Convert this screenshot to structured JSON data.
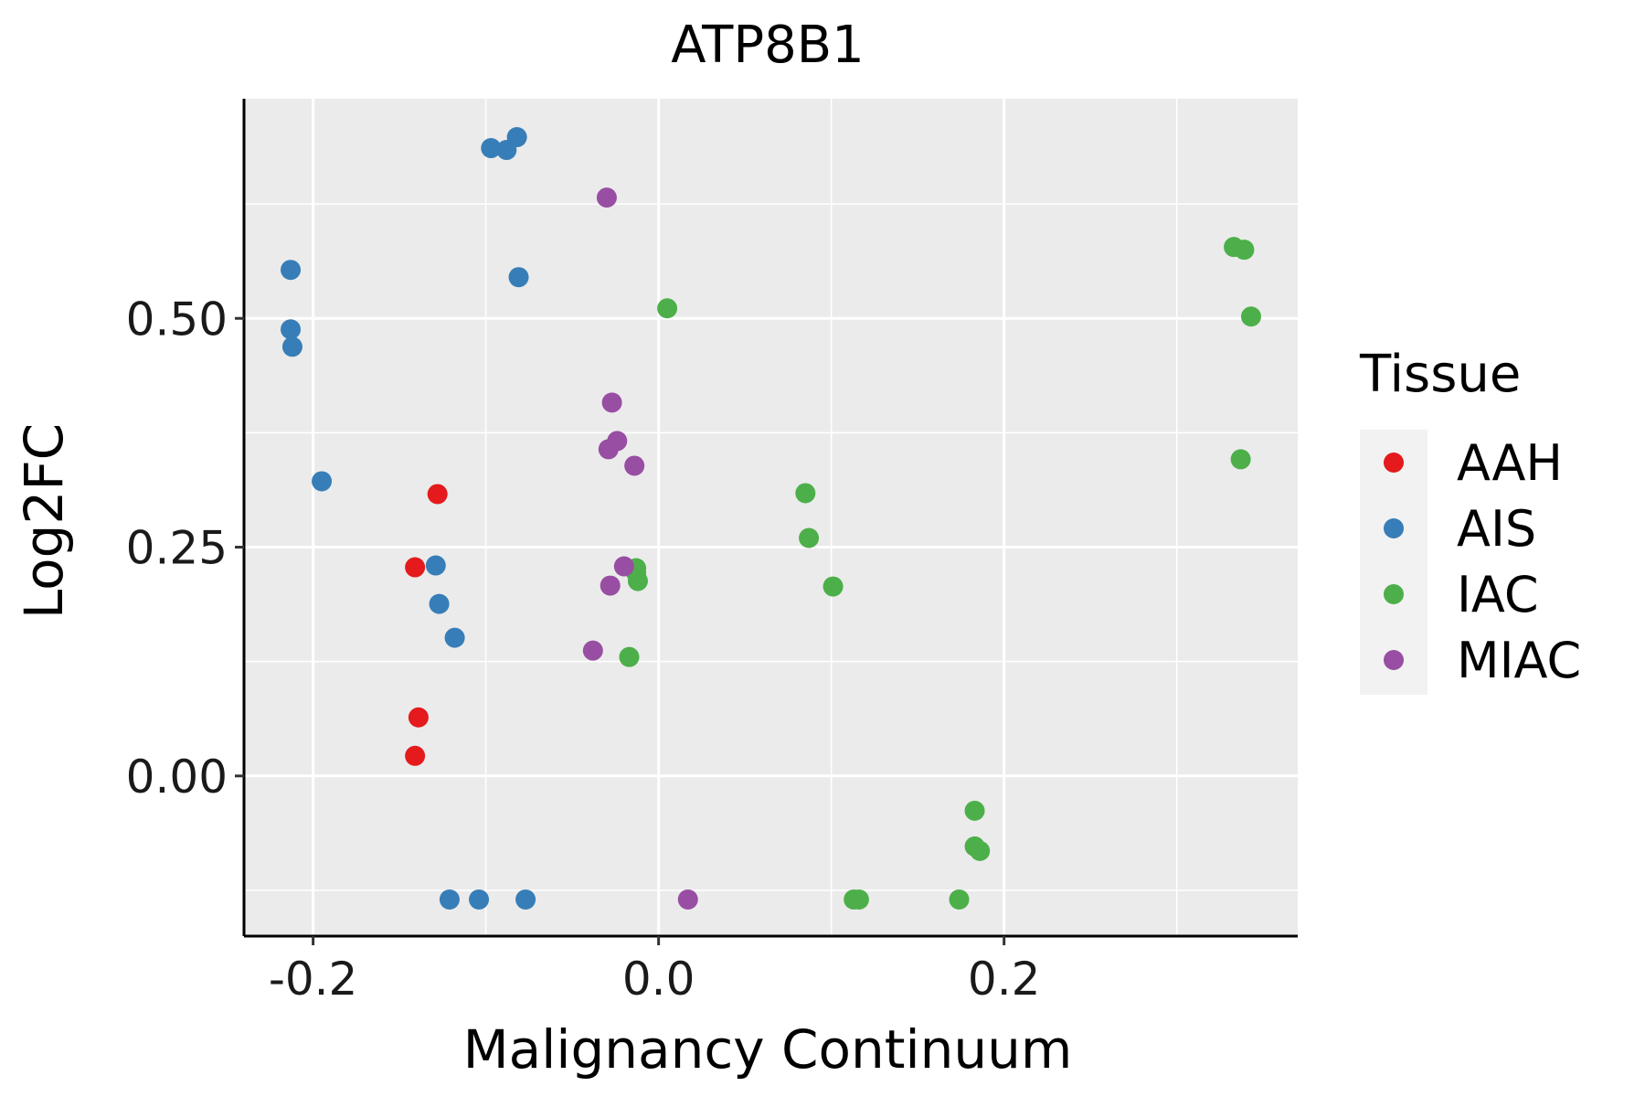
{
  "chart_data": {
    "type": "scatter",
    "title": "ATP8B1",
    "xlabel": "Malignancy Continuum",
    "ylabel": "Log2FC",
    "xlim": [
      -0.24,
      0.37
    ],
    "ylim": [
      -0.175,
      0.74
    ],
    "x_ticks": [
      -0.2,
      0.0,
      0.2
    ],
    "x_tick_labels": [
      "-0.2",
      "0.0",
      "0.2"
    ],
    "y_ticks": [
      0.0,
      0.25,
      0.5
    ],
    "y_tick_labels": [
      "0.00",
      "0.25",
      "0.50"
    ],
    "grid": true,
    "legend": {
      "title": "Tissue",
      "position": "right",
      "entries": [
        "AAH",
        "AIS",
        "IAC",
        "MIAC"
      ]
    },
    "colors": {
      "AAH": "#E41A1C",
      "AIS": "#377EB8",
      "IAC": "#4DAF4A",
      "MIAC": "#984EA3"
    },
    "series": [
      {
        "name": "AAH",
        "points": [
          {
            "x": -0.128,
            "y": 0.308
          },
          {
            "x": -0.141,
            "y": 0.228
          },
          {
            "x": -0.139,
            "y": 0.064
          },
          {
            "x": -0.141,
            "y": 0.022
          }
        ]
      },
      {
        "name": "AIS",
        "points": [
          {
            "x": -0.082,
            "y": 0.698
          },
          {
            "x": -0.097,
            "y": 0.686
          },
          {
            "x": -0.088,
            "y": 0.684
          },
          {
            "x": -0.081,
            "y": 0.545
          },
          {
            "x": -0.213,
            "y": 0.553
          },
          {
            "x": -0.213,
            "y": 0.488
          },
          {
            "x": -0.212,
            "y": 0.469
          },
          {
            "x": -0.195,
            "y": 0.322
          },
          {
            "x": -0.129,
            "y": 0.23
          },
          {
            "x": -0.127,
            "y": 0.188
          },
          {
            "x": -0.118,
            "y": 0.151
          },
          {
            "x": -0.121,
            "y": -0.135
          },
          {
            "x": -0.104,
            "y": -0.135
          },
          {
            "x": -0.077,
            "y": -0.135
          }
        ]
      },
      {
        "name": "IAC",
        "points": [
          {
            "x": 0.005,
            "y": 0.511
          },
          {
            "x": 0.333,
            "y": 0.578
          },
          {
            "x": 0.339,
            "y": 0.575
          },
          {
            "x": 0.343,
            "y": 0.502
          },
          {
            "x": 0.337,
            "y": 0.346
          },
          {
            "x": 0.085,
            "y": 0.309
          },
          {
            "x": 0.087,
            "y": 0.26
          },
          {
            "x": 0.101,
            "y": 0.207
          },
          {
            "x": -0.013,
            "y": 0.227
          },
          {
            "x": -0.013,
            "y": 0.222
          },
          {
            "x": -0.012,
            "y": 0.213
          },
          {
            "x": -0.017,
            "y": 0.13
          },
          {
            "x": 0.183,
            "y": -0.038
          },
          {
            "x": 0.183,
            "y": -0.077
          },
          {
            "x": 0.186,
            "y": -0.082
          },
          {
            "x": 0.113,
            "y": -0.135
          },
          {
            "x": 0.116,
            "y": -0.135
          },
          {
            "x": 0.174,
            "y": -0.135
          }
        ]
      },
      {
        "name": "MIAC",
        "points": [
          {
            "x": -0.03,
            "y": 0.632
          },
          {
            "x": -0.027,
            "y": 0.408
          },
          {
            "x": -0.024,
            "y": 0.366
          },
          {
            "x": -0.029,
            "y": 0.357
          },
          {
            "x": -0.014,
            "y": 0.339
          },
          {
            "x": -0.02,
            "y": 0.229
          },
          {
            "x": -0.028,
            "y": 0.208
          },
          {
            "x": -0.038,
            "y": 0.137
          },
          {
            "x": 0.017,
            "y": -0.135
          }
        ]
      }
    ]
  }
}
